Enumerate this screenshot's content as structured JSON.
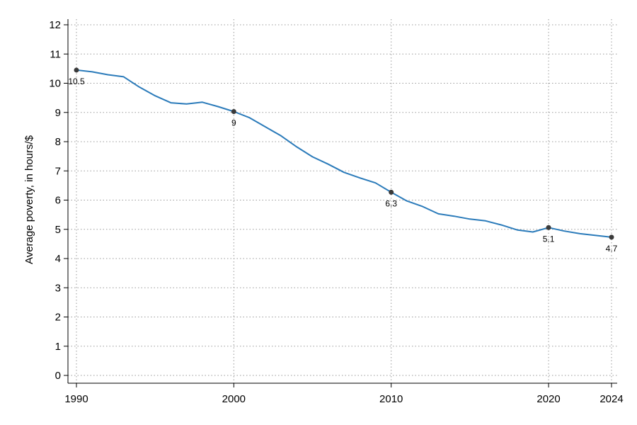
{
  "chart_data": {
    "type": "line",
    "title": "",
    "xlabel": "",
    "ylabel": "Average poverty, in hours/$",
    "xlim": [
      1990,
      2024
    ],
    "ylim": [
      0,
      12
    ],
    "grid": true,
    "x_ticks": [
      1990,
      2000,
      2010,
      2020,
      2024
    ],
    "y_ticks": [
      0,
      1,
      2,
      3,
      4,
      5,
      6,
      7,
      8,
      9,
      10,
      11,
      12
    ],
    "series": [
      {
        "color": "#2b7bba",
        "x": [
          1990,
          1991,
          1992,
          1993,
          1994,
          1995,
          1996,
          1997,
          1998,
          1999,
          2000,
          2001,
          2002,
          2003,
          2004,
          2005,
          2006,
          2007,
          2008,
          2009,
          2010,
          2011,
          2012,
          2013,
          2014,
          2015,
          2016,
          2017,
          2018,
          2019,
          2020,
          2021,
          2022,
          2023,
          2024
        ],
        "y": [
          10.45,
          10.39,
          10.29,
          10.22,
          9.87,
          9.57,
          9.33,
          9.29,
          9.35,
          9.2,
          9.03,
          8.82,
          8.51,
          8.2,
          7.82,
          7.48,
          7.23,
          6.95,
          6.76,
          6.59,
          6.27,
          5.97,
          5.78,
          5.53,
          5.45,
          5.35,
          5.29,
          5.15,
          4.98,
          4.91,
          5.06,
          4.94,
          4.85,
          4.79,
          4.73
        ]
      }
    ],
    "annotations": [
      {
        "x": 1990,
        "y": 10.45,
        "label": "10.5"
      },
      {
        "x": 2000,
        "y": 9.03,
        "label": "9"
      },
      {
        "x": 2010,
        "y": 6.27,
        "label": "6.3"
      },
      {
        "x": 2020,
        "y": 5.06,
        "label": "5.1"
      },
      {
        "x": 2024,
        "y": 4.73,
        "label": "4.7"
      }
    ],
    "marker_color": "#3a3a3a"
  }
}
